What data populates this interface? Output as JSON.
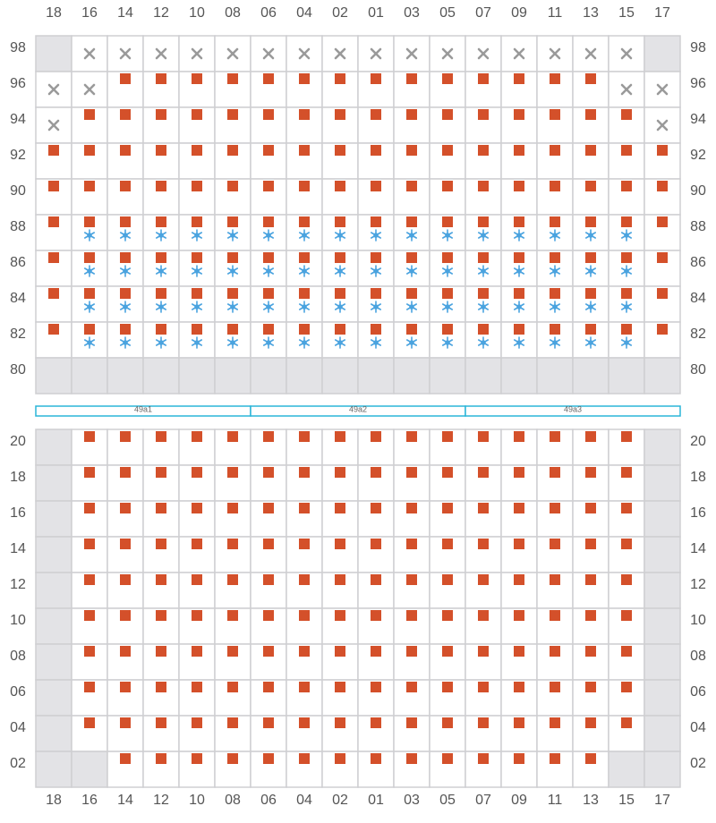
{
  "columns": [
    "18",
    "16",
    "14",
    "12",
    "10",
    "08",
    "06",
    "04",
    "02",
    "01",
    "03",
    "05",
    "07",
    "09",
    "11",
    "13",
    "15",
    "17"
  ],
  "upper": {
    "rows": [
      {
        "label": "98",
        "cells": "GXXXXXXXXXXXXXXXXG"
      },
      {
        "label": "96",
        "cells": "XXAAAAAAAAAAAAAAXX"
      },
      {
        "label": "94",
        "cells": "XAAAAAAAAAAAAAAAAX"
      },
      {
        "label": "92",
        "cells": "AAAAAAAAAAAAAAAAAA"
      },
      {
        "label": "90",
        "cells": "AAAAAAAAAAAAAAAAAA"
      },
      {
        "label": "88",
        "cells": "ACCCCCCCCCCCCCCCCA"
      },
      {
        "label": "86",
        "cells": "ACCCCCCCCCCCCCCCCA"
      },
      {
        "label": "84",
        "cells": "ACCCCCCCCCCCCCCCCA"
      },
      {
        "label": "82",
        "cells": "ACCCCCCCCCCCCCCCCA"
      },
      {
        "label": "80",
        "cells": "GGGGGGGGGGGGGGGGGG"
      }
    ]
  },
  "segments": [
    "49a1",
    "49a2",
    "49a3"
  ],
  "lower": {
    "rows": [
      {
        "label": "20",
        "cells": "GAAAAAAAAAAAAAAAAG"
      },
      {
        "label": "18",
        "cells": "GAAAAAAAAAAAAAAAAG"
      },
      {
        "label": "16",
        "cells": "GAAAAAAAAAAAAAAAAG"
      },
      {
        "label": "14",
        "cells": "GAAAAAAAAAAAAAAAAG"
      },
      {
        "label": "12",
        "cells": "GAAAAAAAAAAAAAAAAG"
      },
      {
        "label": "10",
        "cells": "GAAAAAAAAAAAAAAAAG"
      },
      {
        "label": "08",
        "cells": "GAAAAAAAAAAAAAAAAG"
      },
      {
        "label": "06",
        "cells": "GAAAAAAAAAAAAAAAAG"
      },
      {
        "label": "04",
        "cells": "GAAAAAAAAAAAAAAAAG"
      },
      {
        "label": "02",
        "cells": "GGAAAAAAAAAAAAAAGG"
      }
    ]
  }
}
